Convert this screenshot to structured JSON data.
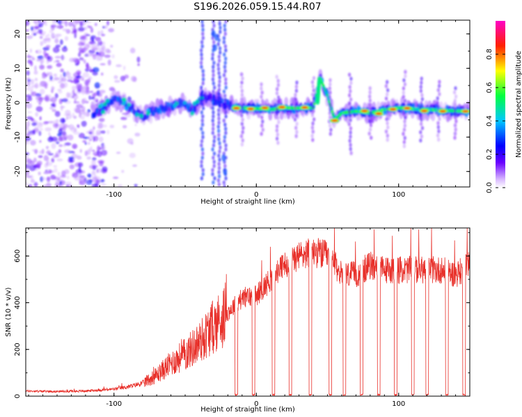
{
  "title": "S196.2026.059.15.44.R07",
  "chart_data": [
    {
      "type": "heatmap",
      "title": "S196.2026.059.15.44.R07",
      "xlabel": "Height of straight line (km)",
      "ylabel": "Frequency (Hz)",
      "xlim": [
        -162,
        150
      ],
      "ylim": [
        -24.5,
        24
      ],
      "xticks": [
        -100,
        0,
        100
      ],
      "yticks": [
        -20,
        -10,
        0,
        10,
        20
      ],
      "xtick_labels": [
        "-100",
        "0",
        "100"
      ],
      "ytick_labels": [
        "-20",
        "-10",
        "0",
        "10",
        "20"
      ],
      "colorbar": {
        "label": "Normalized spectral amplitude",
        "range": [
          0,
          1
        ],
        "ticks": [
          0.0,
          0.2,
          0.4,
          0.6,
          0.8
        ],
        "tick_labels": [
          "0.0",
          "0.2",
          "0.4",
          "0.6",
          "0.8"
        ],
        "colors": [
          "#ffffff",
          "#b070ff",
          "#0000ff",
          "#00ffff",
          "#00ff00",
          "#ffff00",
          "#ff0000",
          "#ff00ff"
        ]
      },
      "ridge": {
        "description_points_x": [
          -112,
          -100,
          -90,
          -80,
          -70,
          -60,
          -52,
          -44,
          -38,
          -18,
          -10,
          0,
          10,
          20,
          30,
          40,
          45,
          50,
          55,
          60,
          70,
          80,
          90,
          100,
          110,
          120,
          130,
          140,
          148
        ],
        "description_points_y": [
          -3,
          1,
          -1,
          -4,
          -2,
          -1,
          0,
          -2,
          2,
          -1,
          -1.5,
          -1.7,
          -2,
          -1.5,
          -1.6,
          -1.5,
          7,
          2,
          -5,
          -3,
          -2.5,
          -3,
          -2,
          -1.5,
          -1.8,
          -2,
          -2.2,
          -2.4,
          -2.5
        ]
      },
      "series_peaks_x": [
        -14,
        -4,
        6,
        18,
        34,
        55,
        76,
        86,
        96,
        106,
        118,
        131,
        147
      ],
      "series_peaks_y": [
        -1.6,
        -1.8,
        -1.5,
        -1.3,
        -1.4,
        -5.2,
        -2.4,
        -3.2,
        -1.9,
        -1.6,
        -2.4,
        -2.5,
        -2.5
      ],
      "vertical_streaks_x": [
        -38,
        -30,
        -26,
        -22,
        -10,
        4,
        15,
        28,
        40,
        52,
        66,
        80,
        92,
        104,
        116,
        128,
        140
      ]
    },
    {
      "type": "line",
      "xlabel": "Height of straight line (km)",
      "ylabel": "SNR (10 * v/v)",
      "xlim": [
        -162,
        150
      ],
      "ylim": [
        0,
        720
      ],
      "xticks": [
        -100,
        0,
        100
      ],
      "yticks": [
        0,
        200,
        400,
        600
      ],
      "xtick_labels": [
        "-100",
        "0",
        "100"
      ],
      "ytick_labels": [
        "0",
        "200",
        "400",
        "600"
      ],
      "color": "#e8302a",
      "envelope_x": [
        -162,
        -140,
        -120,
        -100,
        -90,
        -80,
        -70,
        -60,
        -50,
        -40,
        -30,
        -20,
        -10,
        0,
        10,
        20,
        30,
        40,
        50,
        60,
        70,
        80,
        90,
        100,
        110,
        120,
        130,
        140,
        150
      ],
      "envelope_y": [
        22,
        20,
        22,
        30,
        40,
        55,
        90,
        140,
        180,
        230,
        300,
        360,
        420,
        430,
        500,
        560,
        600,
        620,
        600,
        520,
        520,
        560,
        540,
        540,
        540,
        540,
        540,
        520,
        560
      ],
      "dropout_x": [
        -14,
        -2,
        12,
        24,
        38,
        52,
        62,
        74,
        86,
        98,
        110,
        120,
        134,
        146
      ]
    }
  ]
}
